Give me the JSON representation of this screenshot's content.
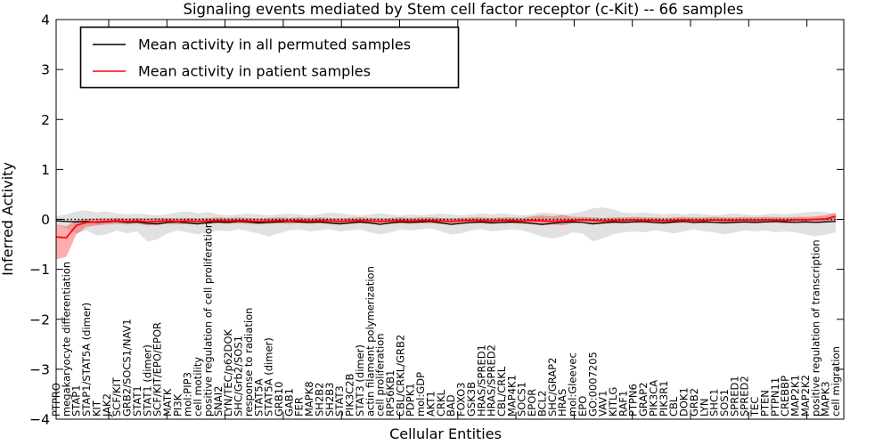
{
  "title": "Signaling events mediated by Stem cell factor receptor (c-Kit) -- 66 samples",
  "legend": {
    "items": [
      {
        "label": "Mean activity in all permuted samples",
        "color": "#000000"
      },
      {
        "label": "Mean activity in patient samples",
        "color": "#ff0000"
      }
    ]
  },
  "colors": {
    "permuted_line": "#000000",
    "patient_line": "#ff0000",
    "permuted_band": "#c8c8c8",
    "patient_band": "#ff0000",
    "zero_line": "#000000"
  },
  "chart_data": {
    "type": "line",
    "title": "Signaling events mediated by Stem cell factor receptor (c-Kit) -- 66 samples",
    "xlabel": "Cellular Entities",
    "ylabel": "Inferred Activity",
    "ylim": [
      -4,
      4
    ],
    "yticks": [
      4,
      3,
      2,
      1,
      0,
      -1,
      -2,
      -3,
      -4
    ],
    "grid": false,
    "legend_position": "upper left",
    "categories": [
      "PTPRO",
      "megakaryocyte differentiation",
      "STAP1",
      "STAP1/STAT5A (dimer)",
      "KIT",
      "JAK2",
      "SCF/KIT",
      "GRB2/SOCS1/NAV1",
      "STAT1",
      "STAT1 (dimer)",
      "SCF/KIT/EPO/EPOR",
      "MATK",
      "PI3K",
      "mol:PIP3",
      "cell motility",
      "positive regulation of cell proliferation",
      "SNAI2",
      "LYN/TEC/p62DOK",
      "SHC/Grb2/SOS1",
      "response to radiation",
      "STAT5A",
      "STAT5A (dimer)",
      "GRB10",
      "GAB1",
      "FER",
      "MAPK8",
      "SH2B2",
      "SH2B3",
      "STAT3",
      "PIK3C2B",
      "STAT3 (dimer)",
      "actin filament polymerization",
      "cell proliferation",
      "RPS6KB1",
      "CBL/CRKL/GRB2",
      "PDPK1",
      "mol:GDP",
      "AKT1",
      "CRKL",
      "BAD",
      "FOXO3",
      "GSK3B",
      "HRAS/SPRED1",
      "HRAS/SPRED2",
      "CBL/CRKL",
      "MAP4K1",
      "SOCS1",
      "EPOR",
      "BCL2",
      "SHC/GRAP2",
      "HRAS",
      "mol:Gleevec",
      "EPO",
      "GO:0007205",
      "VAV1",
      "KITLG",
      "RAF1",
      "PTPN6",
      "GRAP2",
      "PIK3CA",
      "PIK3R1",
      "CBL",
      "DOK1",
      "GRB2",
      "LYN",
      "SHC1",
      "SOS1",
      "SPRED1",
      "SPRED2",
      "TEC",
      "PTEN",
      "PTPN11",
      "CREBBP",
      "MAP2K1",
      "MAP2K2",
      "positive regulation of transcription",
      "MAPK3",
      "cell migration"
    ],
    "series": [
      {
        "name": "Mean activity in all permuted samples",
        "color": "#000000",
        "values": [
          -0.03,
          -0.04,
          -0.05,
          -0.04,
          -0.06,
          -0.05,
          -0.04,
          -0.06,
          -0.05,
          -0.08,
          -0.09,
          -0.06,
          -0.05,
          -0.07,
          -0.09,
          -0.06,
          -0.05,
          -0.06,
          -0.04,
          -0.05,
          -0.07,
          -0.06,
          -0.05,
          -0.04,
          -0.05,
          -0.06,
          -0.05,
          -0.07,
          -0.09,
          -0.07,
          -0.05,
          -0.07,
          -0.1,
          -0.07,
          -0.05,
          -0.06,
          -0.05,
          -0.04,
          -0.07,
          -0.1,
          -0.08,
          -0.06,
          -0.05,
          -0.07,
          -0.06,
          -0.05,
          -0.06,
          -0.08,
          -0.1,
          -0.08,
          -0.06,
          -0.05,
          -0.06,
          -0.09,
          -0.07,
          -0.05,
          -0.06,
          -0.05,
          -0.04,
          -0.06,
          -0.07,
          -0.05,
          -0.04,
          -0.06,
          -0.05,
          -0.06,
          -0.07,
          -0.06,
          -0.05,
          -0.06,
          -0.05,
          -0.04,
          -0.05,
          -0.06,
          -0.05,
          -0.06,
          -0.05,
          -0.04
        ]
      },
      {
        "name": "Mean activity in patient samples",
        "color": "#ff0000",
        "values": [
          -0.35,
          -0.37,
          -0.12,
          -0.06,
          -0.05,
          -0.04,
          -0.03,
          -0.04,
          -0.03,
          -0.05,
          -0.04,
          -0.03,
          -0.04,
          -0.03,
          -0.04,
          -0.03,
          -0.02,
          -0.03,
          -0.02,
          -0.03,
          -0.04,
          -0.03,
          -0.02,
          -0.03,
          -0.02,
          -0.03,
          -0.02,
          -0.03,
          -0.04,
          -0.03,
          -0.02,
          -0.03,
          -0.04,
          -0.03,
          -0.02,
          -0.03,
          -0.02,
          -0.02,
          -0.03,
          -0.04,
          -0.03,
          -0.02,
          -0.02,
          -0.03,
          -0.02,
          -0.02,
          -0.03,
          -0.02,
          -0.03,
          -0.04,
          -0.03,
          -0.02,
          -0.01,
          -0.02,
          -0.03,
          -0.02,
          -0.02,
          -0.01,
          -0.02,
          -0.02,
          -0.03,
          -0.02,
          -0.01,
          -0.02,
          -0.02,
          -0.01,
          -0.02,
          -0.02,
          -0.01,
          -0.02,
          -0.01,
          -0.01,
          -0.02,
          -0.01,
          -0.01,
          0.0,
          0.01,
          0.06
        ]
      }
    ],
    "bands": [
      {
        "name": "permuted samples range",
        "color": "#c8c8c8",
        "opacity": 0.55,
        "upper": [
          0.06,
          0.1,
          0.16,
          0.18,
          0.14,
          0.16,
          0.12,
          0.1,
          0.12,
          0.1,
          0.08,
          0.1,
          0.14,
          0.16,
          0.12,
          0.15,
          0.1,
          0.08,
          0.1,
          0.12,
          0.1,
          0.08,
          0.1,
          0.12,
          0.1,
          0.08,
          0.1,
          0.14,
          0.12,
          0.1,
          0.08,
          0.1,
          0.12,
          0.1,
          0.08,
          0.1,
          0.08,
          0.1,
          0.12,
          0.1,
          0.08,
          0.1,
          0.12,
          0.1,
          0.12,
          0.1,
          0.08,
          0.1,
          0.14,
          0.12,
          0.1,
          0.12,
          0.16,
          0.22,
          0.24,
          0.2,
          0.14,
          0.12,
          0.14,
          0.12,
          0.1,
          0.12,
          0.1,
          0.12,
          0.1,
          0.08,
          0.1,
          0.12,
          0.1,
          0.08,
          0.1,
          0.12,
          0.1,
          0.12,
          0.14,
          0.16,
          0.14,
          0.12
        ],
        "lower": [
          -0.1,
          -0.18,
          -0.28,
          -0.22,
          -0.32,
          -0.3,
          -0.22,
          -0.28,
          -0.24,
          -0.44,
          -0.4,
          -0.28,
          -0.22,
          -0.26,
          -0.3,
          -0.26,
          -0.22,
          -0.24,
          -0.2,
          -0.24,
          -0.28,
          -0.34,
          -0.28,
          -0.22,
          -0.2,
          -0.24,
          -0.22,
          -0.2,
          -0.24,
          -0.22,
          -0.2,
          -0.26,
          -0.3,
          -0.26,
          -0.2,
          -0.22,
          -0.2,
          -0.18,
          -0.24,
          -0.3,
          -0.28,
          -0.22,
          -0.2,
          -0.24,
          -0.22,
          -0.2,
          -0.22,
          -0.28,
          -0.34,
          -0.38,
          -0.34,
          -0.26,
          -0.28,
          -0.44,
          -0.38,
          -0.3,
          -0.26,
          -0.24,
          -0.26,
          -0.22,
          -0.24,
          -0.28,
          -0.24,
          -0.2,
          -0.24,
          -0.26,
          -0.3,
          -0.26,
          -0.22,
          -0.24,
          -0.22,
          -0.26,
          -0.24,
          -0.26,
          -0.3,
          -0.34,
          -0.3,
          -0.26
        ]
      },
      {
        "name": "patient samples range",
        "color": "#ff0000",
        "opacity": 0.32,
        "upper": [
          -0.1,
          -0.14,
          -0.02,
          0.01,
          0.02,
          0.02,
          0.03,
          0.02,
          0.03,
          0.02,
          0.03,
          0.03,
          0.02,
          0.03,
          0.02,
          0.03,
          0.04,
          0.03,
          0.04,
          0.03,
          0.02,
          0.03,
          0.04,
          0.03,
          0.04,
          0.03,
          0.04,
          0.03,
          0.02,
          0.03,
          0.04,
          0.03,
          0.02,
          0.03,
          0.04,
          0.03,
          0.04,
          0.04,
          0.03,
          0.02,
          0.03,
          0.04,
          0.04,
          0.03,
          0.04,
          0.04,
          0.03,
          0.06,
          0.08,
          0.06,
          0.09,
          0.05,
          0.05,
          0.04,
          0.03,
          0.04,
          0.04,
          0.05,
          0.04,
          0.04,
          0.03,
          0.04,
          0.05,
          0.04,
          0.04,
          0.05,
          0.04,
          0.04,
          0.05,
          0.04,
          0.05,
          0.05,
          0.04,
          0.05,
          0.05,
          0.06,
          0.08,
          0.13
        ],
        "lower": [
          -0.8,
          -0.75,
          -0.3,
          -0.15,
          -0.12,
          -0.1,
          -0.09,
          -0.1,
          -0.09,
          -0.12,
          -0.11,
          -0.09,
          -0.1,
          -0.09,
          -0.1,
          -0.09,
          -0.08,
          -0.09,
          -0.08,
          -0.09,
          -0.1,
          -0.09,
          -0.08,
          -0.09,
          -0.08,
          -0.09,
          -0.08,
          -0.09,
          -0.1,
          -0.09,
          -0.08,
          -0.09,
          -0.1,
          -0.09,
          -0.08,
          -0.09,
          -0.08,
          -0.08,
          -0.09,
          -0.1,
          -0.09,
          -0.08,
          -0.08,
          -0.09,
          -0.08,
          -0.08,
          -0.09,
          -0.1,
          -0.12,
          -0.1,
          -0.12,
          -0.08,
          -0.07,
          -0.08,
          -0.09,
          -0.08,
          -0.08,
          -0.07,
          -0.08,
          -0.08,
          -0.09,
          -0.08,
          -0.07,
          -0.08,
          -0.08,
          -0.07,
          -0.08,
          -0.08,
          -0.07,
          -0.08,
          -0.07,
          -0.07,
          -0.08,
          -0.07,
          -0.07,
          -0.06,
          -0.05,
          -0.02
        ]
      }
    ],
    "zero_line": {
      "y": 0,
      "style": "dotted",
      "color": "#000000"
    }
  }
}
